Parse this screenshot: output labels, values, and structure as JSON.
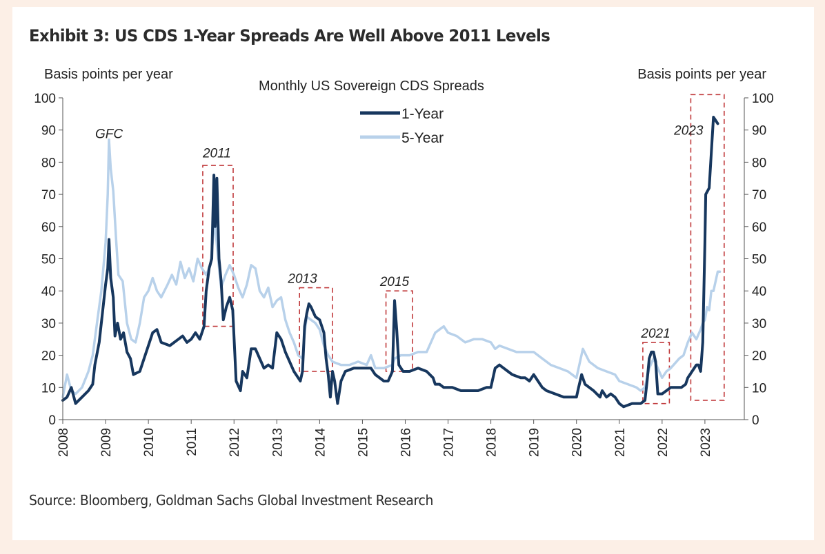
{
  "title": "Exhibit 3: US CDS 1-Year Spreads Are Well Above 2011 Levels",
  "source": "Source: Bloomberg, Goldman Sachs Global Investment Research",
  "chart_data": {
    "type": "line",
    "subtitle": "Monthly US Sovereign  CDS Spreads",
    "ylabel_left": "Basis points  per year",
    "ylabel_right": "Basis points  per year",
    "ylim": [
      0,
      100
    ],
    "yticks": [
      0,
      10,
      20,
      30,
      40,
      50,
      60,
      70,
      80,
      90,
      100
    ],
    "xlim": [
      2008,
      2023.92
    ],
    "xticks": [
      2008,
      2009,
      2010,
      2011,
      2012,
      2013,
      2014,
      2015,
      2016,
      2017,
      2018,
      2019,
      2020,
      2021,
      2022,
      2023
    ],
    "legend_position": "top-center",
    "grid": false,
    "series": [
      {
        "name": "1-Year",
        "color": "#17375e",
        "points": [
          [
            2008.0,
            6
          ],
          [
            2008.1,
            7
          ],
          [
            2008.2,
            10
          ],
          [
            2008.3,
            5
          ],
          [
            2008.45,
            7
          ],
          [
            2008.6,
            9
          ],
          [
            2008.7,
            11
          ],
          [
            2008.75,
            17
          ],
          [
            2008.85,
            24
          ],
          [
            2008.9,
            30
          ],
          [
            2009.0,
            42
          ],
          [
            2009.05,
            47
          ],
          [
            2009.08,
            56
          ],
          [
            2009.12,
            44
          ],
          [
            2009.18,
            38
          ],
          [
            2009.22,
            26
          ],
          [
            2009.28,
            30
          ],
          [
            2009.35,
            25
          ],
          [
            2009.42,
            27
          ],
          [
            2009.5,
            21
          ],
          [
            2009.58,
            19
          ],
          [
            2009.65,
            14
          ],
          [
            2009.8,
            15
          ],
          [
            2009.9,
            19
          ],
          [
            2010.0,
            23
          ],
          [
            2010.1,
            27
          ],
          [
            2010.2,
            28
          ],
          [
            2010.3,
            24
          ],
          [
            2010.5,
            23
          ],
          [
            2010.7,
            25
          ],
          [
            2010.8,
            26
          ],
          [
            2010.9,
            24
          ],
          [
            2011.0,
            25
          ],
          [
            2011.1,
            27
          ],
          [
            2011.2,
            25
          ],
          [
            2011.3,
            29
          ],
          [
            2011.35,
            40
          ],
          [
            2011.42,
            47
          ],
          [
            2011.48,
            50
          ],
          [
            2011.53,
            76
          ],
          [
            2011.56,
            60
          ],
          [
            2011.6,
            75
          ],
          [
            2011.65,
            50
          ],
          [
            2011.7,
            43
          ],
          [
            2011.75,
            31
          ],
          [
            2011.82,
            35
          ],
          [
            2011.9,
            38
          ],
          [
            2011.97,
            34
          ],
          [
            2012.05,
            12
          ],
          [
            2012.15,
            9
          ],
          [
            2012.2,
            15
          ],
          [
            2012.3,
            13
          ],
          [
            2012.4,
            22
          ],
          [
            2012.5,
            22
          ],
          [
            2012.6,
            19
          ],
          [
            2012.7,
            16
          ],
          [
            2012.8,
            17
          ],
          [
            2012.9,
            16
          ],
          [
            2013.0,
            27
          ],
          [
            2013.1,
            25
          ],
          [
            2013.2,
            21
          ],
          [
            2013.3,
            18
          ],
          [
            2013.4,
            15
          ],
          [
            2013.5,
            13
          ],
          [
            2013.55,
            12
          ],
          [
            2013.6,
            15
          ],
          [
            2013.65,
            29
          ],
          [
            2013.7,
            33
          ],
          [
            2013.75,
            36
          ],
          [
            2013.8,
            35
          ],
          [
            2013.9,
            32
          ],
          [
            2014.0,
            31
          ],
          [
            2014.1,
            27
          ],
          [
            2014.15,
            19
          ],
          [
            2014.2,
            14
          ],
          [
            2014.25,
            7
          ],
          [
            2014.3,
            15
          ],
          [
            2014.35,
            12
          ],
          [
            2014.42,
            5
          ],
          [
            2014.5,
            12
          ],
          [
            2014.6,
            15
          ],
          [
            2014.8,
            16
          ],
          [
            2015.0,
            16
          ],
          [
            2015.2,
            16
          ],
          [
            2015.3,
            14
          ],
          [
            2015.5,
            12
          ],
          [
            2015.6,
            12
          ],
          [
            2015.7,
            15
          ],
          [
            2015.75,
            37
          ],
          [
            2015.8,
            28
          ],
          [
            2015.85,
            17
          ],
          [
            2015.95,
            15
          ],
          [
            2016.1,
            15
          ],
          [
            2016.3,
            16
          ],
          [
            2016.5,
            15
          ],
          [
            2016.65,
            13
          ],
          [
            2016.7,
            11
          ],
          [
            2016.8,
            11
          ],
          [
            2016.9,
            10
          ],
          [
            2017.0,
            10
          ],
          [
            2017.1,
            10
          ],
          [
            2017.3,
            9
          ],
          [
            2017.5,
            9
          ],
          [
            2017.7,
            9
          ],
          [
            2017.9,
            10
          ],
          [
            2018.0,
            10
          ],
          [
            2018.1,
            16
          ],
          [
            2018.2,
            17
          ],
          [
            2018.3,
            16
          ],
          [
            2018.4,
            15
          ],
          [
            2018.5,
            14
          ],
          [
            2018.7,
            13
          ],
          [
            2018.8,
            13
          ],
          [
            2018.9,
            12
          ],
          [
            2019.0,
            14
          ],
          [
            2019.1,
            12
          ],
          [
            2019.2,
            10
          ],
          [
            2019.3,
            9
          ],
          [
            2019.5,
            8
          ],
          [
            2019.7,
            7
          ],
          [
            2019.9,
            7
          ],
          [
            2020.0,
            7
          ],
          [
            2020.05,
            10
          ],
          [
            2020.12,
            14
          ],
          [
            2020.2,
            11
          ],
          [
            2020.3,
            10
          ],
          [
            2020.4,
            9
          ],
          [
            2020.55,
            7
          ],
          [
            2020.6,
            9
          ],
          [
            2020.7,
            7
          ],
          [
            2020.8,
            8
          ],
          [
            2020.9,
            7
          ],
          [
            2021.0,
            5
          ],
          [
            2021.1,
            4
          ],
          [
            2021.3,
            5
          ],
          [
            2021.5,
            5
          ],
          [
            2021.6,
            6
          ],
          [
            2021.65,
            12
          ],
          [
            2021.7,
            19
          ],
          [
            2021.75,
            21
          ],
          [
            2021.8,
            21
          ],
          [
            2021.85,
            18
          ],
          [
            2021.9,
            8
          ],
          [
            2022.0,
            8
          ],
          [
            2022.1,
            9
          ],
          [
            2022.2,
            10
          ],
          [
            2022.35,
            10
          ],
          [
            2022.45,
            10
          ],
          [
            2022.55,
            11
          ],
          [
            2022.6,
            13
          ],
          [
            2022.7,
            15
          ],
          [
            2022.8,
            17
          ],
          [
            2022.85,
            17
          ],
          [
            2022.9,
            15
          ],
          [
            2022.95,
            24
          ],
          [
            2023.0,
            55
          ],
          [
            2023.02,
            70
          ],
          [
            2023.1,
            72
          ],
          [
            2023.2,
            94
          ],
          [
            2023.3,
            92
          ]
        ]
      },
      {
        "name": "5-Year",
        "color": "#b8d1ea",
        "points": [
          [
            2008.0,
            7
          ],
          [
            2008.1,
            14
          ],
          [
            2008.2,
            9
          ],
          [
            2008.3,
            8
          ],
          [
            2008.45,
            10
          ],
          [
            2008.6,
            15
          ],
          [
            2008.7,
            20
          ],
          [
            2008.8,
            30
          ],
          [
            2008.9,
            40
          ],
          [
            2009.0,
            55
          ],
          [
            2009.05,
            70
          ],
          [
            2009.08,
            87
          ],
          [
            2009.12,
            78
          ],
          [
            2009.18,
            71
          ],
          [
            2009.25,
            55
          ],
          [
            2009.3,
            45
          ],
          [
            2009.4,
            43
          ],
          [
            2009.5,
            30
          ],
          [
            2009.6,
            25
          ],
          [
            2009.7,
            24
          ],
          [
            2009.8,
            30
          ],
          [
            2009.9,
            38
          ],
          [
            2010.0,
            40
          ],
          [
            2010.1,
            44
          ],
          [
            2010.2,
            40
          ],
          [
            2010.3,
            38
          ],
          [
            2010.45,
            42
          ],
          [
            2010.55,
            45
          ],
          [
            2010.65,
            42
          ],
          [
            2010.75,
            49
          ],
          [
            2010.85,
            44
          ],
          [
            2010.95,
            47
          ],
          [
            2011.05,
            43
          ],
          [
            2011.15,
            50
          ],
          [
            2011.25,
            47
          ],
          [
            2011.35,
            45
          ],
          [
            2011.45,
            48
          ],
          [
            2011.5,
            55
          ],
          [
            2011.55,
            62
          ],
          [
            2011.62,
            51
          ],
          [
            2011.7,
            41
          ],
          [
            2011.8,
            45
          ],
          [
            2011.9,
            48
          ],
          [
            2012.0,
            45
          ],
          [
            2012.1,
            41
          ],
          [
            2012.2,
            38
          ],
          [
            2012.3,
            42
          ],
          [
            2012.4,
            48
          ],
          [
            2012.5,
            47
          ],
          [
            2012.6,
            40
          ],
          [
            2012.7,
            38
          ],
          [
            2012.8,
            41
          ],
          [
            2012.9,
            35
          ],
          [
            2013.0,
            37
          ],
          [
            2013.1,
            38
          ],
          [
            2013.2,
            31
          ],
          [
            2013.3,
            27
          ],
          [
            2013.4,
            24
          ],
          [
            2013.5,
            20
          ],
          [
            2013.6,
            19
          ],
          [
            2013.65,
            27
          ],
          [
            2013.7,
            32
          ],
          [
            2013.8,
            31
          ],
          [
            2013.9,
            30
          ],
          [
            2014.0,
            28
          ],
          [
            2014.1,
            23
          ],
          [
            2014.2,
            20
          ],
          [
            2014.3,
            18
          ],
          [
            2014.5,
            17
          ],
          [
            2014.7,
            17
          ],
          [
            2014.9,
            18
          ],
          [
            2015.1,
            17
          ],
          [
            2015.2,
            20
          ],
          [
            2015.3,
            16
          ],
          [
            2015.5,
            16
          ],
          [
            2015.7,
            17
          ],
          [
            2015.75,
            19
          ],
          [
            2015.9,
            20
          ],
          [
            2016.1,
            20
          ],
          [
            2016.3,
            21
          ],
          [
            2016.5,
            21
          ],
          [
            2016.6,
            24
          ],
          [
            2016.7,
            27
          ],
          [
            2016.8,
            28
          ],
          [
            2016.9,
            29
          ],
          [
            2017.0,
            27
          ],
          [
            2017.2,
            26
          ],
          [
            2017.4,
            24
          ],
          [
            2017.6,
            25
          ],
          [
            2017.8,
            25
          ],
          [
            2018.0,
            24
          ],
          [
            2018.1,
            22
          ],
          [
            2018.2,
            23
          ],
          [
            2018.4,
            22
          ],
          [
            2018.6,
            21
          ],
          [
            2018.8,
            21
          ],
          [
            2019.0,
            21
          ],
          [
            2019.2,
            19
          ],
          [
            2019.4,
            17
          ],
          [
            2019.6,
            16
          ],
          [
            2019.8,
            15
          ],
          [
            2020.0,
            13
          ],
          [
            2020.1,
            19
          ],
          [
            2020.15,
            22
          ],
          [
            2020.3,
            18
          ],
          [
            2020.5,
            16
          ],
          [
            2020.7,
            15
          ],
          [
            2020.9,
            14
          ],
          [
            2021.0,
            12
          ],
          [
            2021.2,
            11
          ],
          [
            2021.4,
            10
          ],
          [
            2021.5,
            9
          ],
          [
            2021.6,
            10
          ],
          [
            2021.7,
            16
          ],
          [
            2021.8,
            19
          ],
          [
            2021.9,
            16
          ],
          [
            2022.0,
            13
          ],
          [
            2022.1,
            15
          ],
          [
            2022.2,
            16
          ],
          [
            2022.4,
            19
          ],
          [
            2022.5,
            20
          ],
          [
            2022.6,
            24
          ],
          [
            2022.7,
            27
          ],
          [
            2022.8,
            25
          ],
          [
            2022.9,
            28
          ],
          [
            2022.95,
            30
          ],
          [
            2023.0,
            31
          ],
          [
            2023.05,
            35
          ],
          [
            2023.1,
            34
          ],
          [
            2023.15,
            40
          ],
          [
            2023.2,
            40
          ],
          [
            2023.3,
            46
          ],
          [
            2023.35,
            46
          ]
        ]
      }
    ],
    "annotations": [
      {
        "label": "GFC",
        "x": 2009.08,
        "y": 89,
        "box": null
      },
      {
        "label": "2011",
        "x": 2011.6,
        "y": 83,
        "box": {
          "x0": 2011.27,
          "x1": 2011.98,
          "y0": 29,
          "y1": 79
        }
      },
      {
        "label": "2013",
        "x": 2013.6,
        "y": 44,
        "box": {
          "x0": 2013.53,
          "x1": 2014.3,
          "y0": 15,
          "y1": 41
        }
      },
      {
        "label": "2015",
        "x": 2015.75,
        "y": 43,
        "box": {
          "x0": 2015.55,
          "x1": 2016.17,
          "y0": 15,
          "y1": 40
        }
      },
      {
        "label": "2021",
        "x": 2021.85,
        "y": 27,
        "box": {
          "x0": 2021.55,
          "x1": 2022.17,
          "y0": 5,
          "y1": 24
        }
      },
      {
        "label": "2023",
        "x": 2022.62,
        "y": 90,
        "box": {
          "x0": 2022.67,
          "x1": 2023.45,
          "y0": 6,
          "y1": 101
        }
      }
    ]
  }
}
